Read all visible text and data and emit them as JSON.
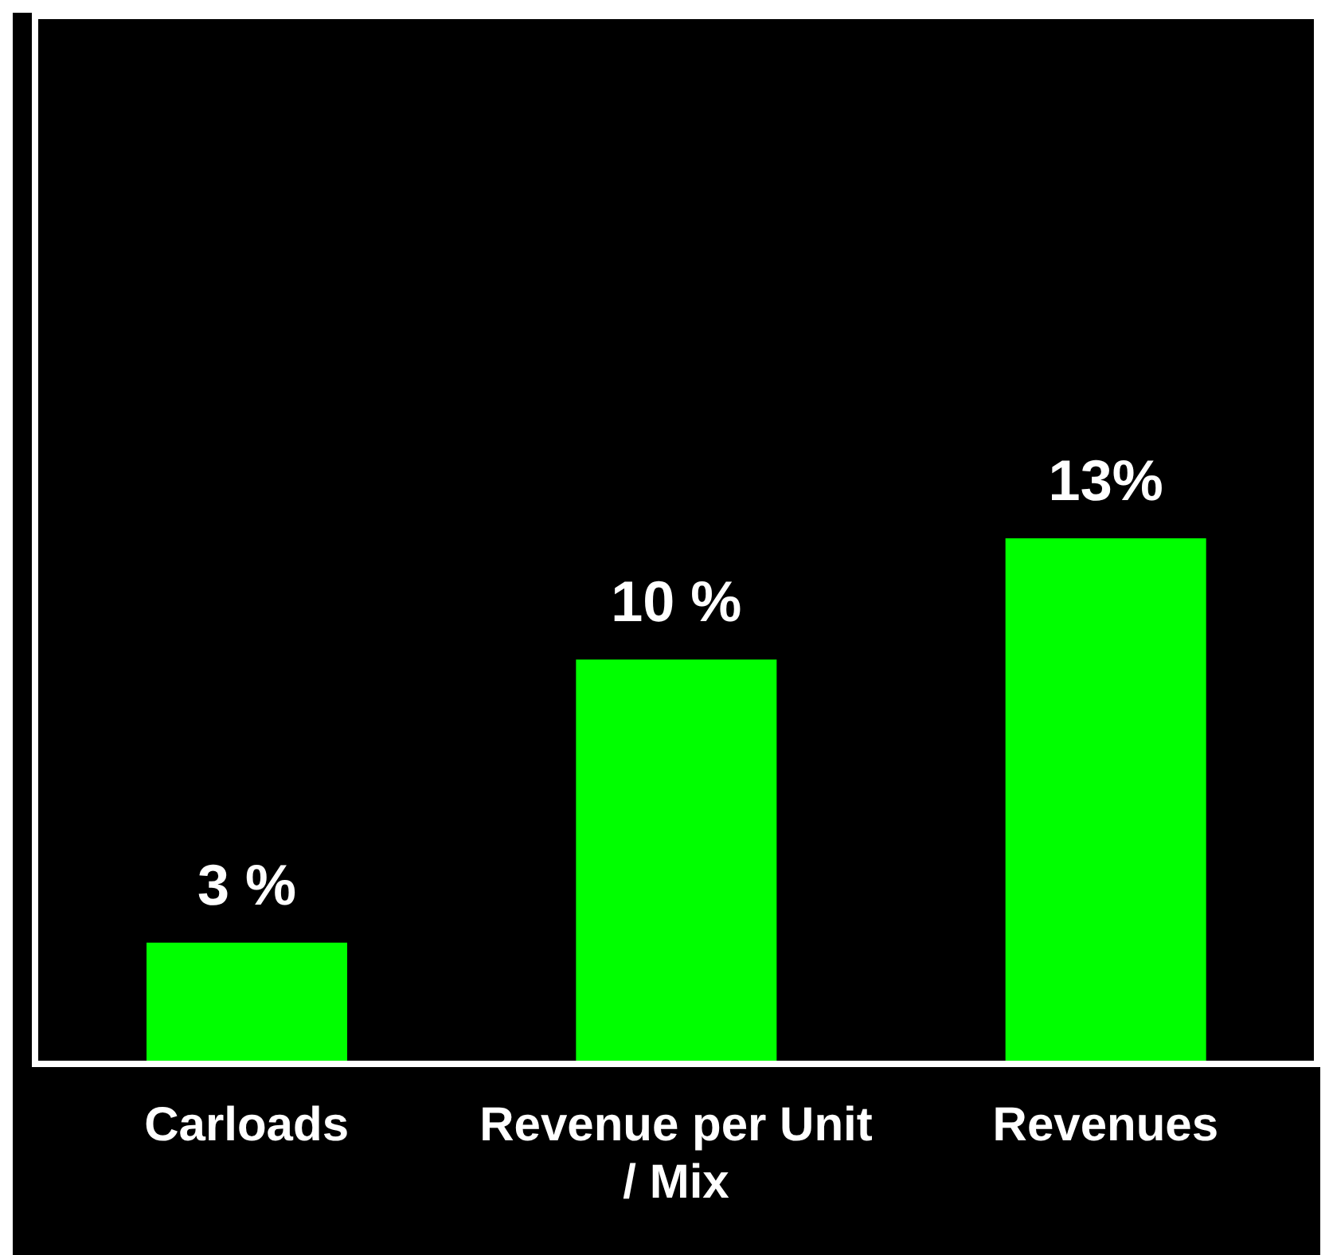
{
  "chart_data": {
    "type": "bar",
    "categories": [
      "Carloads",
      "Revenue per Unit / Mix",
      "Revenues"
    ],
    "values": [
      3,
      10,
      13
    ],
    "value_labels": [
      "3 %",
      "10 %",
      "13%"
    ],
    "color": "#00ff00",
    "legend": false,
    "grid": false
  }
}
